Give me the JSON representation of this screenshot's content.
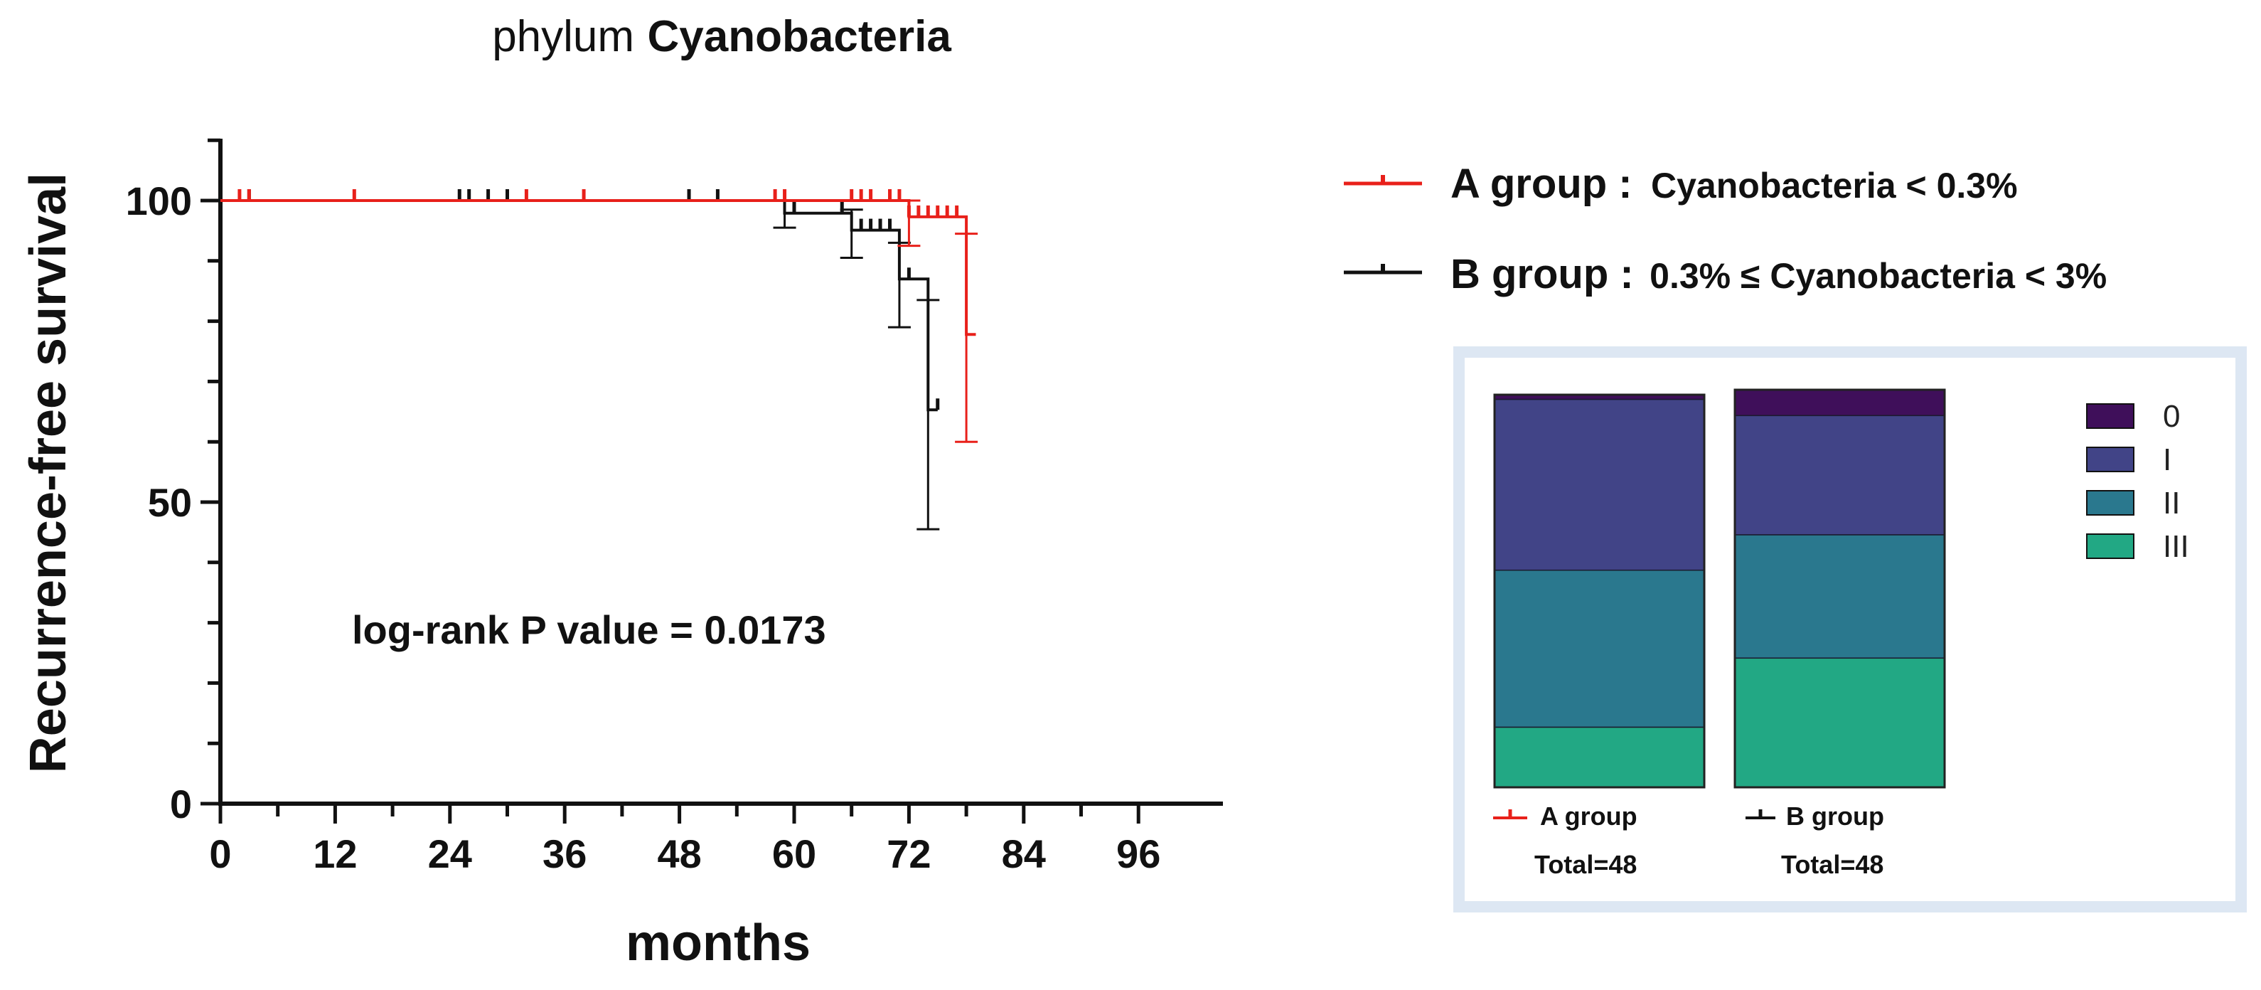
{
  "chart_data": [
    {
      "type": "line",
      "subtype": "kaplan-meier",
      "title_prefix": "phylum",
      "title_bold": "Cyanobacteria",
      "xlabel": "months",
      "ylabel": "Recurrence-free survival",
      "xlim": [
        0,
        100
      ],
      "ylim": [
        0,
        110
      ],
      "xticks": [
        0,
        12,
        24,
        36,
        48,
        60,
        72,
        84,
        96
      ],
      "yticks": [
        0,
        50,
        100
      ],
      "grid": false,
      "annotation": "log-rank P value = 0.0173",
      "series": [
        {
          "name": "A group",
          "color": "#e8201a",
          "legend_label": "A group :",
          "legend_condition": "Cyanobacteria < 0.3%",
          "steps": [
            [
              0,
              100
            ],
            [
              72,
              100
            ],
            [
              72,
              97.3
            ],
            [
              78,
              97.3
            ],
            [
              78,
              77.8
            ],
            [
              79,
              77.8
            ]
          ],
          "censored": [
            [
              2,
              100
            ],
            [
              3,
              100
            ],
            [
              14,
              100
            ],
            [
              32,
              100
            ],
            [
              38,
              100
            ],
            [
              58,
              100
            ],
            [
              59,
              100
            ],
            [
              66,
              100
            ],
            [
              67,
              100
            ],
            [
              68,
              100
            ],
            [
              70,
              100
            ],
            [
              71,
              100
            ],
            [
              72,
              97.3
            ],
            [
              73,
              97.3
            ],
            [
              74,
              97.3
            ],
            [
              75,
              97.3
            ],
            [
              76,
              97.3
            ],
            [
              77,
              97.3
            ]
          ],
          "error_bars": [
            {
              "x": 72,
              "low": 92.5,
              "high": 100
            },
            {
              "x": 78,
              "low": 60,
              "high": 94.5
            }
          ]
        },
        {
          "name": "B group",
          "color": "#111111",
          "legend_label": "B group :",
          "legend_condition": "0.3% ≤ Cyanobacteria < 3%",
          "steps": [
            [
              0,
              100
            ],
            [
              59,
              100
            ],
            [
              59,
              97.9
            ],
            [
              66,
              97.9
            ],
            [
              66,
              95.1
            ],
            [
              71,
              95.1
            ],
            [
              71,
              87
            ],
            [
              74,
              87
            ],
            [
              74,
              65.3
            ],
            [
              75,
              65.3
            ]
          ],
          "censored": [
            [
              3,
              100
            ],
            [
              25,
              100
            ],
            [
              26,
              100
            ],
            [
              28,
              100
            ],
            [
              30,
              100
            ],
            [
              49,
              100
            ],
            [
              52,
              100
            ],
            [
              60,
              97.9
            ],
            [
              65,
              97.9
            ],
            [
              67,
              95.1
            ],
            [
              68,
              95.1
            ],
            [
              69,
              95.1
            ],
            [
              70,
              95.1
            ],
            [
              72,
              87
            ],
            [
              75,
              65.3
            ]
          ],
          "error_bars": [
            {
              "x": 59,
              "low": 95.5,
              "high": 100
            },
            {
              "x": 66,
              "low": 90.5,
              "high": 98.5
            },
            {
              "x": 71,
              "low": 79,
              "high": 93
            },
            {
              "x": 74,
              "low": 45.5,
              "high": 83.5
            }
          ]
        }
      ]
    },
    {
      "type": "bar",
      "subtype": "stacked-100",
      "categories": [
        "A group",
        "B group"
      ],
      "category_totals": [
        "Total=48",
        "Total=48"
      ],
      "legend": [
        "0",
        "I",
        "II",
        "III"
      ],
      "colors": [
        "#3f0f5a",
        "#414487",
        "#2a788e",
        "#22a884"
      ],
      "series": [
        {
          "name": "0",
          "values": [
            1.2,
            6.5
          ]
        },
        {
          "name": "I",
          "values": [
            43.5,
            30
          ]
        },
        {
          "name": "II",
          "values": [
            40,
            31
          ]
        },
        {
          "name": "III",
          "values": [
            15.3,
            32.5
          ]
        }
      ],
      "ylim": [
        0,
        100
      ]
    }
  ]
}
